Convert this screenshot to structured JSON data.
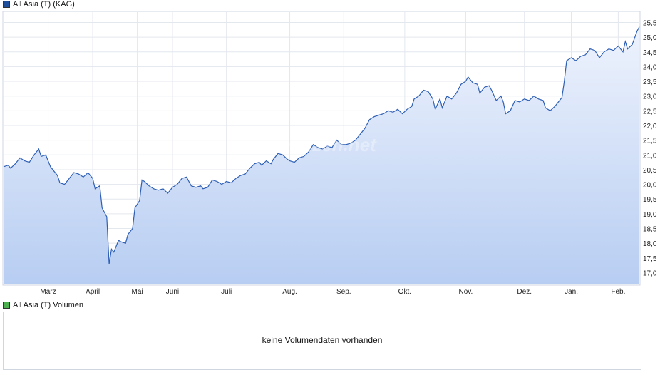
{
  "legend": {
    "price_label": "All Asia (T) (KAG)",
    "price_color": "#1f4e9c",
    "volume_label": "All Asia (T) Volumen",
    "volume_color": "#4caf50"
  },
  "volume": {
    "message": "keine Volumendaten vorhanden"
  },
  "watermark": "finanzen.net",
  "chart_data": {
    "type": "area",
    "line_color": "#2e5fb5",
    "fill_top_color": "#eef3fd",
    "fill_bottom_color": "#b7cdf2",
    "grid": true,
    "ylim": [
      16.6,
      25.85
    ],
    "y_ticks": [
      "17,0",
      "17,5",
      "18,0",
      "18,5",
      "19,0",
      "19,5",
      "20,0",
      "20,5",
      "21,0",
      "21,5",
      "22,0",
      "22,5",
      "23,0",
      "23,5",
      "24,0",
      "24,5",
      "25,0",
      "25,5"
    ],
    "y_tick_values": [
      17.0,
      17.5,
      18.0,
      18.5,
      19.0,
      19.5,
      20.0,
      20.5,
      21.0,
      21.5,
      22.0,
      22.5,
      23.0,
      23.5,
      24.0,
      24.5,
      25.0,
      25.5
    ],
    "x_range": [
      0,
      271
    ],
    "month_labels": [
      {
        "label": "März",
        "x": 19
      },
      {
        "label": "April",
        "x": 38
      },
      {
        "label": "Mai",
        "x": 57
      },
      {
        "label": "Juni",
        "x": 72
      },
      {
        "label": "Juli",
        "x": 95
      },
      {
        "label": "Aug.",
        "x": 122
      },
      {
        "label": "Sep.",
        "x": 145
      },
      {
        "label": "Okt.",
        "x": 171
      },
      {
        "label": "Nov.",
        "x": 197
      },
      {
        "label": "Dez.",
        "x": 222
      },
      {
        "label": "Jan.",
        "x": 242
      },
      {
        "label": "Feb.",
        "x": 262
      }
    ],
    "series": [
      {
        "values": [
          [
            0,
            20.6
          ],
          [
            2,
            20.65
          ],
          [
            3,
            20.55
          ],
          [
            5,
            20.7
          ],
          [
            7,
            20.9
          ],
          [
            9,
            20.8
          ],
          [
            11,
            20.75
          ],
          [
            13,
            21.0
          ],
          [
            15,
            21.2
          ],
          [
            16,
            20.95
          ],
          [
            18,
            21.0
          ],
          [
            20,
            20.6
          ],
          [
            22,
            20.4
          ],
          [
            23,
            20.3
          ],
          [
            24,
            20.05
          ],
          [
            26,
            20.0
          ],
          [
            28,
            20.2
          ],
          [
            30,
            20.4
          ],
          [
            32,
            20.35
          ],
          [
            34,
            20.25
          ],
          [
            36,
            20.4
          ],
          [
            38,
            20.2
          ],
          [
            39,
            19.85
          ],
          [
            41,
            19.95
          ],
          [
            42,
            19.2
          ],
          [
            44,
            18.9
          ],
          [
            45,
            17.3
          ],
          [
            46,
            17.8
          ],
          [
            47,
            17.7
          ],
          [
            49,
            18.1
          ],
          [
            50,
            18.05
          ],
          [
            52,
            18.0
          ],
          [
            53,
            18.3
          ],
          [
            55,
            18.5
          ],
          [
            56,
            19.2
          ],
          [
            58,
            19.45
          ],
          [
            59,
            20.15
          ],
          [
            60,
            20.1
          ],
          [
            62,
            19.95
          ],
          [
            64,
            19.85
          ],
          [
            66,
            19.8
          ],
          [
            68,
            19.85
          ],
          [
            70,
            19.7
          ],
          [
            72,
            19.9
          ],
          [
            74,
            20.0
          ],
          [
            76,
            20.2
          ],
          [
            78,
            20.25
          ],
          [
            80,
            19.95
          ],
          [
            82,
            19.9
          ],
          [
            84,
            19.95
          ],
          [
            85,
            19.85
          ],
          [
            87,
            19.9
          ],
          [
            89,
            20.15
          ],
          [
            91,
            20.1
          ],
          [
            93,
            20.0
          ],
          [
            95,
            20.1
          ],
          [
            97,
            20.05
          ],
          [
            99,
            20.2
          ],
          [
            101,
            20.3
          ],
          [
            103,
            20.35
          ],
          [
            105,
            20.55
          ],
          [
            107,
            20.7
          ],
          [
            109,
            20.75
          ],
          [
            110,
            20.65
          ],
          [
            112,
            20.8
          ],
          [
            114,
            20.7
          ],
          [
            115,
            20.85
          ],
          [
            117,
            21.05
          ],
          [
            119,
            21.0
          ],
          [
            121,
            20.85
          ],
          [
            122,
            20.8
          ],
          [
            124,
            20.75
          ],
          [
            126,
            20.9
          ],
          [
            128,
            20.95
          ],
          [
            130,
            21.1
          ],
          [
            132,
            21.35
          ],
          [
            134,
            21.25
          ],
          [
            136,
            21.2
          ],
          [
            138,
            21.3
          ],
          [
            140,
            21.25
          ],
          [
            142,
            21.5
          ],
          [
            144,
            21.35
          ],
          [
            146,
            21.35
          ],
          [
            148,
            21.4
          ],
          [
            150,
            21.5
          ],
          [
            152,
            21.7
          ],
          [
            154,
            21.9
          ],
          [
            156,
            22.2
          ],
          [
            158,
            22.3
          ],
          [
            160,
            22.35
          ],
          [
            162,
            22.4
          ],
          [
            164,
            22.5
          ],
          [
            166,
            22.45
          ],
          [
            168,
            22.55
          ],
          [
            170,
            22.4
          ],
          [
            172,
            22.55
          ],
          [
            174,
            22.65
          ],
          [
            175,
            22.9
          ],
          [
            177,
            23.0
          ],
          [
            179,
            23.2
          ],
          [
            181,
            23.15
          ],
          [
            183,
            22.9
          ],
          [
            184,
            22.55
          ],
          [
            186,
            22.9
          ],
          [
            187,
            22.6
          ],
          [
            189,
            23.0
          ],
          [
            191,
            22.9
          ],
          [
            193,
            23.1
          ],
          [
            195,
            23.4
          ],
          [
            197,
            23.5
          ],
          [
            198,
            23.65
          ],
          [
            200,
            23.45
          ],
          [
            202,
            23.4
          ],
          [
            203,
            23.1
          ],
          [
            205,
            23.3
          ],
          [
            207,
            23.35
          ],
          [
            208,
            23.2
          ],
          [
            210,
            22.85
          ],
          [
            212,
            23.0
          ],
          [
            213,
            22.8
          ],
          [
            214,
            22.4
          ],
          [
            216,
            22.5
          ],
          [
            218,
            22.85
          ],
          [
            220,
            22.8
          ],
          [
            222,
            22.9
          ],
          [
            224,
            22.85
          ],
          [
            226,
            23.0
          ],
          [
            228,
            22.9
          ],
          [
            230,
            22.85
          ],
          [
            231,
            22.6
          ],
          [
            233,
            22.5
          ],
          [
            235,
            22.65
          ],
          [
            237,
            22.85
          ],
          [
            238,
            22.95
          ],
          [
            239,
            23.5
          ],
          [
            240,
            24.2
          ],
          [
            242,
            24.3
          ],
          [
            244,
            24.2
          ],
          [
            246,
            24.35
          ],
          [
            248,
            24.4
          ],
          [
            250,
            24.6
          ],
          [
            252,
            24.55
          ],
          [
            254,
            24.3
          ],
          [
            256,
            24.5
          ],
          [
            258,
            24.6
          ],
          [
            260,
            24.55
          ],
          [
            262,
            24.7
          ],
          [
            264,
            24.5
          ],
          [
            265,
            24.85
          ],
          [
            266,
            24.6
          ],
          [
            268,
            24.75
          ],
          [
            270,
            25.2
          ],
          [
            271,
            25.35
          ]
        ]
      }
    ]
  }
}
